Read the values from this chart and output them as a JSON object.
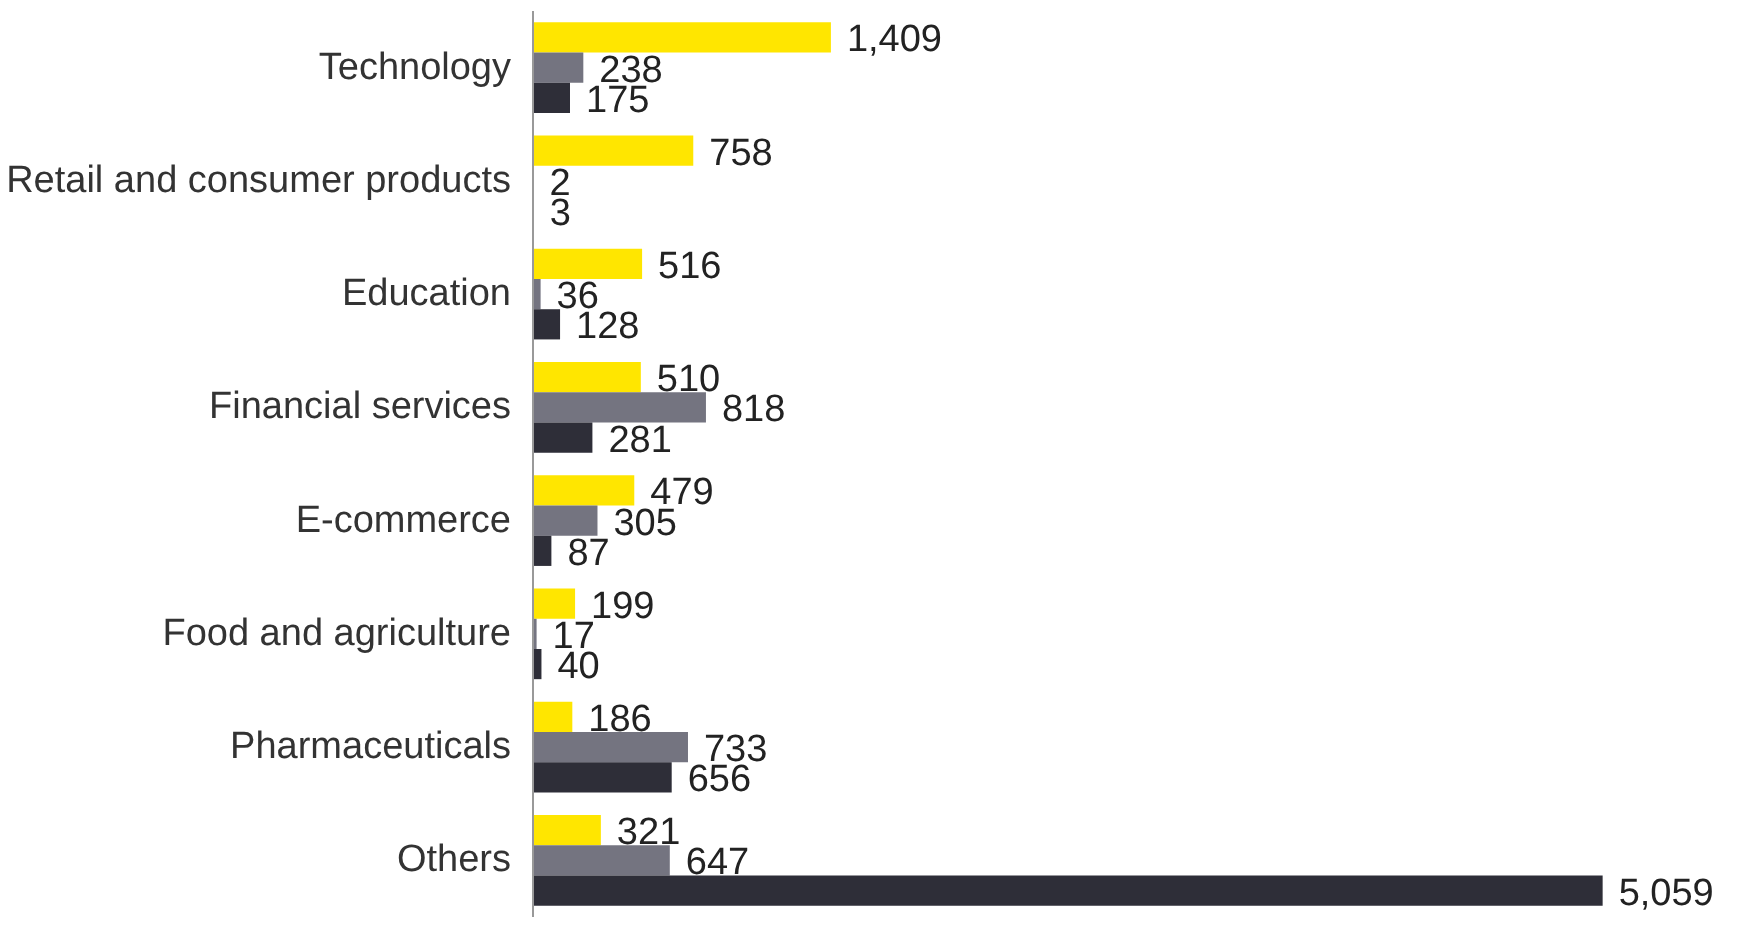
{
  "chart_data": {
    "type": "bar",
    "orientation": "horizontal",
    "categories": [
      "Technology",
      "Retail and consumer products",
      "Education",
      "Financial services",
      "E-commerce",
      "Food and agriculture",
      "Pharmaceuticals",
      "Others"
    ],
    "series": [
      {
        "color": "#ffe600",
        "values": [
          1409,
          758,
          516,
          510,
          479,
          199,
          186,
          321
        ],
        "value_labels": [
          "1,409",
          "758",
          "516",
          "510",
          "479",
          "199",
          "186",
          "321"
        ]
      },
      {
        "color": "#747480",
        "values": [
          238,
          2,
          36,
          818,
          305,
          17,
          733,
          647
        ],
        "value_labels": [
          "238",
          "2",
          "36",
          "818",
          "305",
          "17",
          "733",
          "647"
        ]
      },
      {
        "color": "#2e2e38",
        "values": [
          175,
          3,
          128,
          281,
          87,
          40,
          656,
          5059
        ],
        "value_labels": [
          "175",
          "3",
          "128",
          "281",
          "87",
          "40",
          "656",
          "5,059"
        ]
      }
    ],
    "tick_labels": "y"
  }
}
